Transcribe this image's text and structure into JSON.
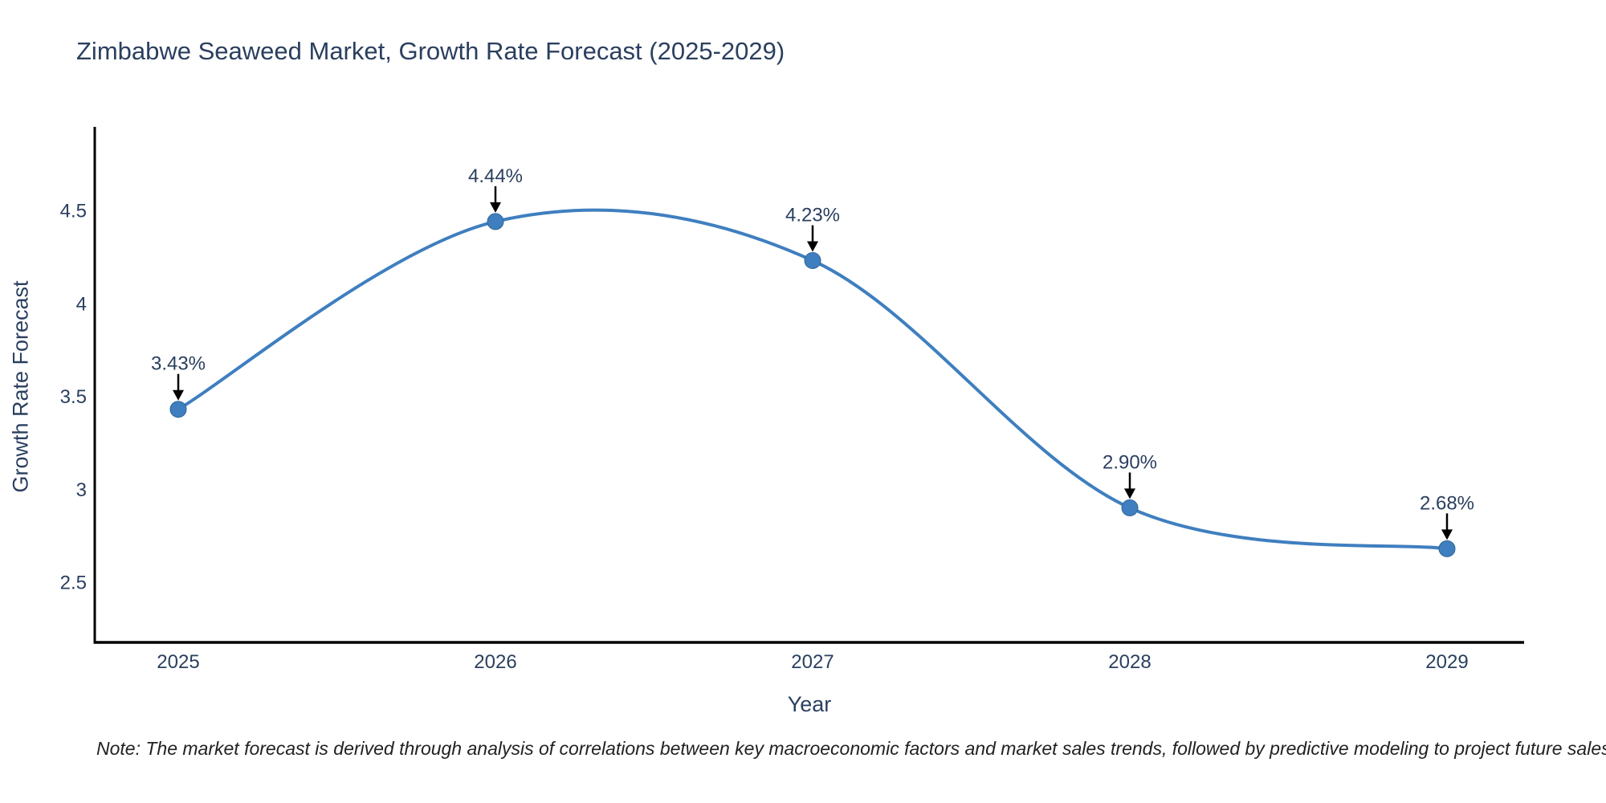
{
  "header": {
    "title": "Zimbabwe Seaweed Market, Growth Rate Forecast (2025-2029)"
  },
  "footnote": "Note: The market forecast is derived through analysis of correlations between key macroeconomic factors and market sales trends, followed by predictive modeling to project future sales",
  "chart_data": {
    "type": "line",
    "title": "Zimbabwe Seaweed Market, Growth Rate Forecast (2025-2029)",
    "xlabel": "Year",
    "ylabel": "Growth Rate Forecast",
    "x": [
      2025,
      2026,
      2027,
      2028,
      2029
    ],
    "series": [
      {
        "name": "Growth Rate Forecast",
        "values": [
          3.43,
          4.44,
          4.23,
          2.9,
          2.68
        ],
        "point_labels": [
          "3.43%",
          "4.44%",
          "4.23%",
          "2.90%",
          "2.68%"
        ]
      }
    ],
    "line_shape": "spline",
    "markers": true,
    "grid": false,
    "legend": false,
    "xticks": [
      "2025",
      "2026",
      "2027",
      "2028",
      "2029"
    ],
    "yticks": [
      2.5,
      3,
      3.5,
      4,
      4.5
    ],
    "ylim": [
      2.18,
      4.95
    ],
    "xlim": [
      2024.74,
      2029.24
    ],
    "colors": {
      "line": "#3f7fbf",
      "marker_fill": "#3f7fbf",
      "marker_edge": "#2f6597",
      "axis_line": "#000000",
      "tick_text": "#2a3f5f",
      "annotation_text": "#2a3f5f",
      "annotation_arrow": "#000000"
    }
  }
}
